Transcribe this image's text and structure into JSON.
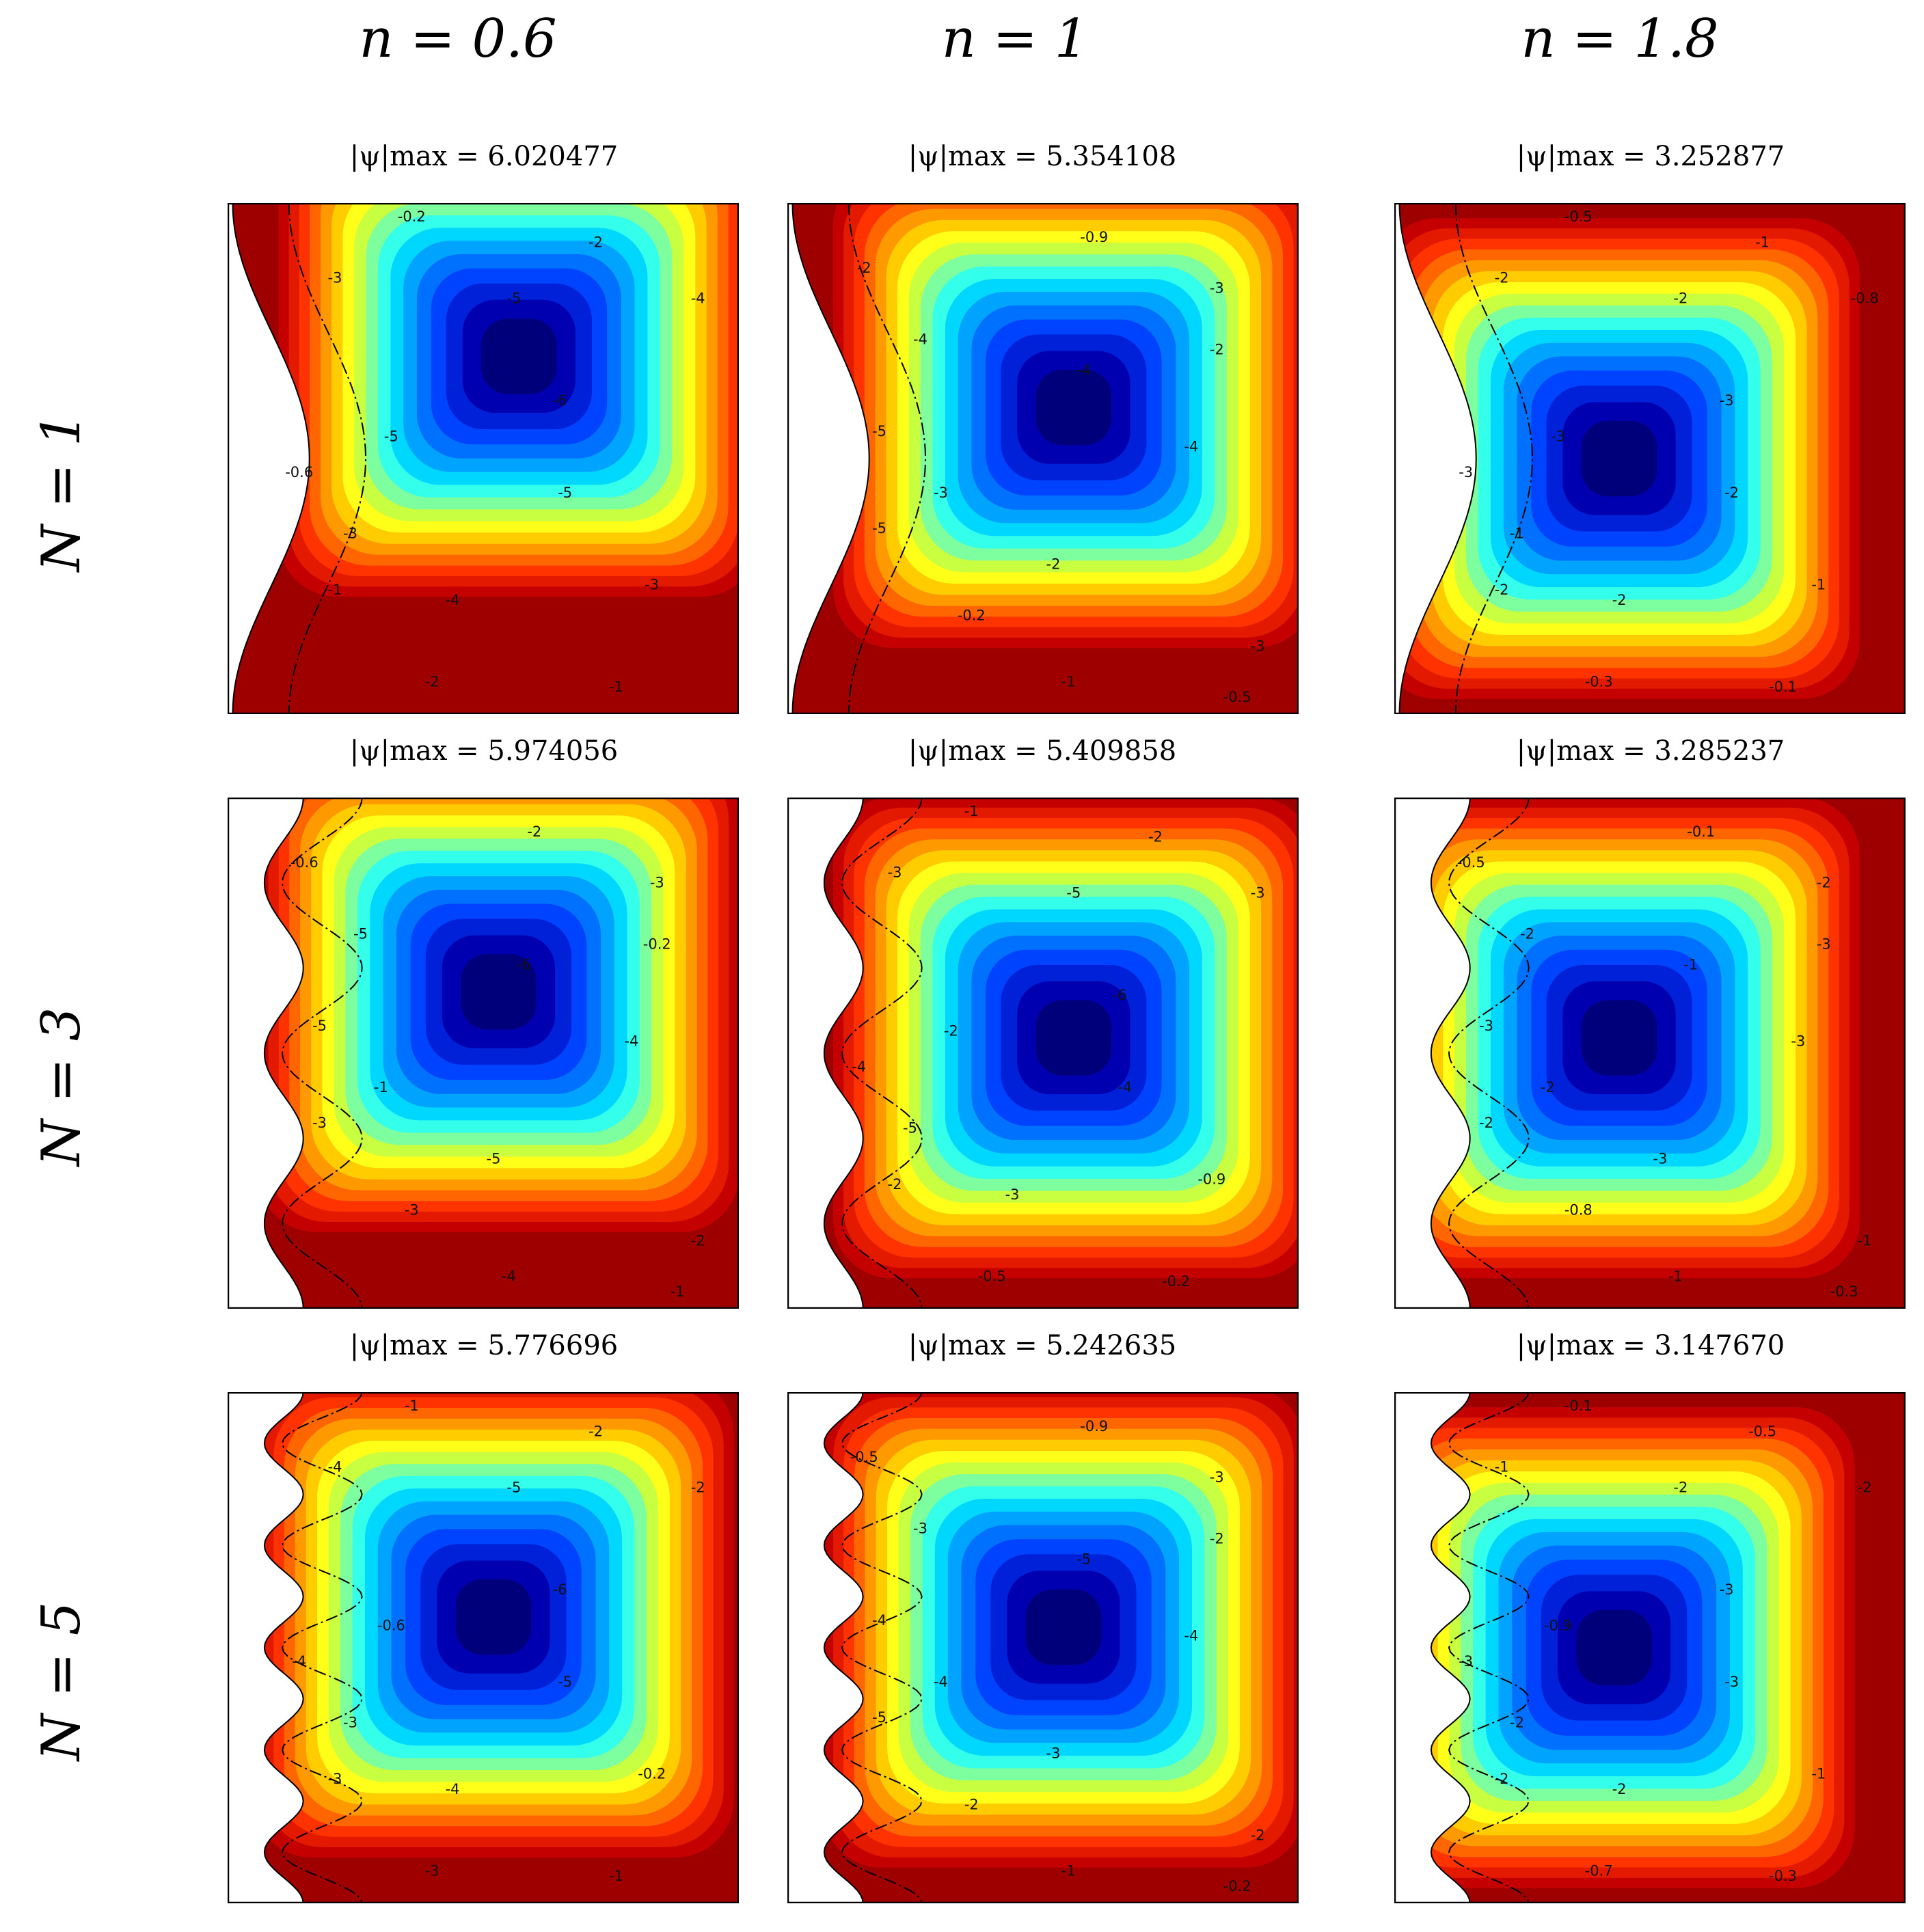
{
  "column_headers": [
    "n = 0.6",
    "n = 1",
    "n = 1.8"
  ],
  "row_headers": [
    "N = 1",
    "N = 3",
    "N = 5"
  ],
  "subtitles": [
    "|ψ|max = 6.020477",
    "|ψ|max = 5.354108",
    "|ψ|max = 3.252877",
    "|ψ|max = 5.974056",
    "|ψ|max = 5.409858",
    "|ψ|max = 3.285237",
    "|ψ|max = 5.776696",
    "|ψ|max = 5.242635",
    "|ψ|max = 3.147670"
  ],
  "colors": {
    "contour_fills": [
      "#9e0000",
      "#c40000",
      "#e41a00",
      "#ff3300",
      "#ff6600",
      "#ff9900",
      "#ffcc00",
      "#ffff1a",
      "#c8ff40",
      "#7dffa0",
      "#33ffea",
      "#00d7ff",
      "#00a4ff",
      "#0070ff",
      "#0043ff",
      "#0021d8",
      "#0000b0",
      "#00007a"
    ]
  },
  "chart_data": [
    {
      "type": "contour",
      "title": "|ψ|max = 6.020477",
      "params": {
        "n": 0.6,
        "N": 1
      },
      "psi_max": 6.020477,
      "contour_labels": [
        "-0.2",
        "-2",
        "-3",
        "-5",
        "-4",
        "-6",
        "-5",
        "-5",
        "-0.6",
        "-3",
        "-1",
        "-4",
        "-3",
        "-2",
        "-1"
      ]
    },
    {
      "type": "contour",
      "title": "|ψ|max = 5.354108",
      "params": {
        "n": 1,
        "N": 1
      },
      "psi_max": 5.354108,
      "contour_labels": [
        "-0.9",
        "-2",
        "-3",
        "-4",
        "-4",
        "-2",
        "-5",
        "-4",
        "-3",
        "-2",
        "-5",
        "-0.2",
        "-3",
        "-1",
        "-0.5"
      ]
    },
    {
      "type": "contour",
      "title": "|ψ|max = 3.252877",
      "params": {
        "n": 1.8,
        "N": 1
      },
      "psi_max": 3.252877,
      "contour_labels": [
        "-0.5",
        "-1",
        "-2",
        "-2",
        "-0.8",
        "-3",
        "-3",
        "-2",
        "-3",
        "-1",
        "-2",
        "-2",
        "-1",
        "-0.3",
        "-0.1"
      ]
    },
    {
      "type": "contour",
      "title": "|ψ|max = 5.974056",
      "params": {
        "n": 0.6,
        "N": 3
      },
      "psi_max": 5.974056,
      "contour_labels": [
        "-2",
        "-0.6",
        "-3",
        "-5",
        "-6",
        "-0.2",
        "-5",
        "-4",
        "-1",
        "-5",
        "-3",
        "-3",
        "-2",
        "-4",
        "-1"
      ]
    },
    {
      "type": "contour",
      "title": "|ψ|max = 5.409858",
      "params": {
        "n": 1,
        "N": 3
      },
      "psi_max": 5.409858,
      "contour_labels": [
        "-1",
        "-2",
        "-3",
        "-5",
        "-3",
        "-6",
        "-2",
        "-4",
        "-4",
        "-5",
        "-2",
        "-3",
        "-0.9",
        "-0.5",
        "-0.2"
      ]
    },
    {
      "type": "contour",
      "title": "|ψ|max = 3.285237",
      "params": {
        "n": 1.8,
        "N": 3
      },
      "psi_max": 3.285237,
      "contour_labels": [
        "-0.1",
        "-0.5",
        "-2",
        "-2",
        "-1",
        "-3",
        "-3",
        "-3",
        "-2",
        "-3",
        "-2",
        "-0.8",
        "-1",
        "-1",
        "-0.3"
      ]
    },
    {
      "type": "contour",
      "title": "|ψ|max = 5.776696",
      "params": {
        "n": 0.6,
        "N": 5
      },
      "psi_max": 5.776696,
      "contour_labels": [
        "-1",
        "-2",
        "-4",
        "-5",
        "-2",
        "-6",
        "-0.6",
        "-5",
        "-4",
        "-3",
        "-3",
        "-4",
        "-0.2",
        "-3",
        "-1"
      ]
    },
    {
      "type": "contour",
      "title": "|ψ|max = 5.242635",
      "params": {
        "n": 1,
        "N": 5
      },
      "psi_max": 5.242635,
      "contour_labels": [
        "-0.9",
        "-0.5",
        "-3",
        "-3",
        "-5",
        "-2",
        "-4",
        "-4",
        "-4",
        "-3",
        "-5",
        "-2",
        "-2",
        "-1",
        "-0.2"
      ]
    },
    {
      "type": "contour",
      "title": "|ψ|max = 3.147670",
      "params": {
        "n": 1.8,
        "N": 5
      },
      "psi_max": 3.14767,
      "contour_labels": [
        "-0.1",
        "-0.5",
        "-1",
        "-2",
        "-2",
        "-3",
        "-0.9",
        "-3",
        "-3",
        "-2",
        "-2",
        "-2",
        "-1",
        "-0.7",
        "-0.3"
      ]
    }
  ]
}
